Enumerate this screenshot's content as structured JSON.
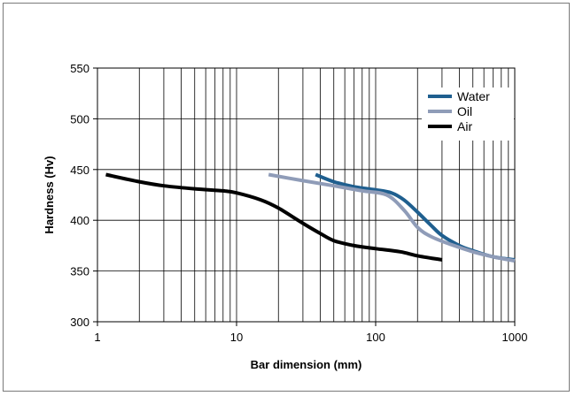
{
  "chart_data": {
    "type": "line",
    "title": "",
    "xlabel": "Bar dimension (mm)",
    "ylabel": "Hardness (Hv)",
    "xscale": "log",
    "xlim": [
      1,
      1000
    ],
    "ylim": [
      300,
      550
    ],
    "x_ticks": [
      1,
      10,
      100,
      1000
    ],
    "x_tick_labels": [
      "1",
      "10",
      "100",
      "1000"
    ],
    "y_ticks": [
      300,
      350,
      400,
      450,
      500,
      550
    ],
    "y_tick_labels": [
      "300",
      "350",
      "400",
      "450",
      "500",
      "550"
    ],
    "grid": true,
    "legend_position": "top-right",
    "series": [
      {
        "name": "Water",
        "color": "#1f5f8f",
        "x": [
          37,
          50,
          70,
          100,
          130,
          160,
          200,
          250,
          300,
          400,
          500,
          700,
          1000
        ],
        "y": [
          445,
          438,
          433,
          430,
          427,
          420,
          408,
          395,
          385,
          375,
          370,
          364,
          361
        ]
      },
      {
        "name": "Oil",
        "color": "#8f9cb8",
        "x": [
          17,
          30,
          50,
          80,
          120,
          160,
          200,
          250,
          350,
          500,
          700,
          1000
        ],
        "y": [
          445,
          439,
          434,
          429,
          425,
          410,
          393,
          384,
          376,
          369,
          364,
          360
        ]
      },
      {
        "name": "Air",
        "color": "#000000",
        "x": [
          1.15,
          2,
          3,
          5,
          8,
          10,
          15,
          20,
          30,
          40,
          50,
          70,
          100,
          150,
          200,
          300
        ],
        "y": [
          445,
          438,
          434,
          431,
          429,
          427,
          420,
          412,
          397,
          387,
          380,
          375,
          372,
          369,
          365,
          361
        ]
      }
    ]
  }
}
